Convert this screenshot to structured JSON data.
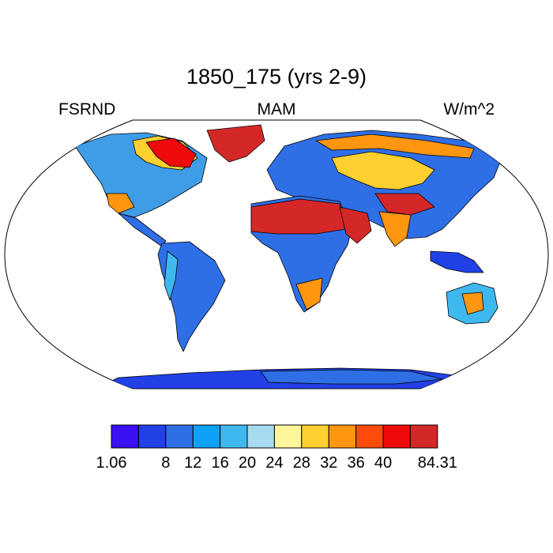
{
  "title": "1850_175 (yrs 2-9)",
  "variable": "FSRND",
  "season": "MAM",
  "units": "W/m^2",
  "colorbar": {
    "colors": [
      "#3b10f5",
      "#2141e6",
      "#2f6fe6",
      "#10a0f5",
      "#3fb8f0",
      "#a8daf0",
      "#fff59a",
      "#ffd030",
      "#ff9610",
      "#ff4c0a",
      "#f00a0a",
      "#d42828"
    ],
    "labels": [
      {
        "value": "1.06",
        "boundary": 0
      },
      {
        "value": "8",
        "boundary": 2
      },
      {
        "value": "12",
        "boundary": 3
      },
      {
        "value": "16",
        "boundary": 4
      },
      {
        "value": "20",
        "boundary": 5
      },
      {
        "value": "24",
        "boundary": 6
      },
      {
        "value": "28",
        "boundary": 7
      },
      {
        "value": "32",
        "boundary": 8
      },
      {
        "value": "36",
        "boundary": 9
      },
      {
        "value": "40",
        "boundary": 10
      },
      {
        "value": "84.31",
        "boundary": 12
      }
    ]
  }
}
